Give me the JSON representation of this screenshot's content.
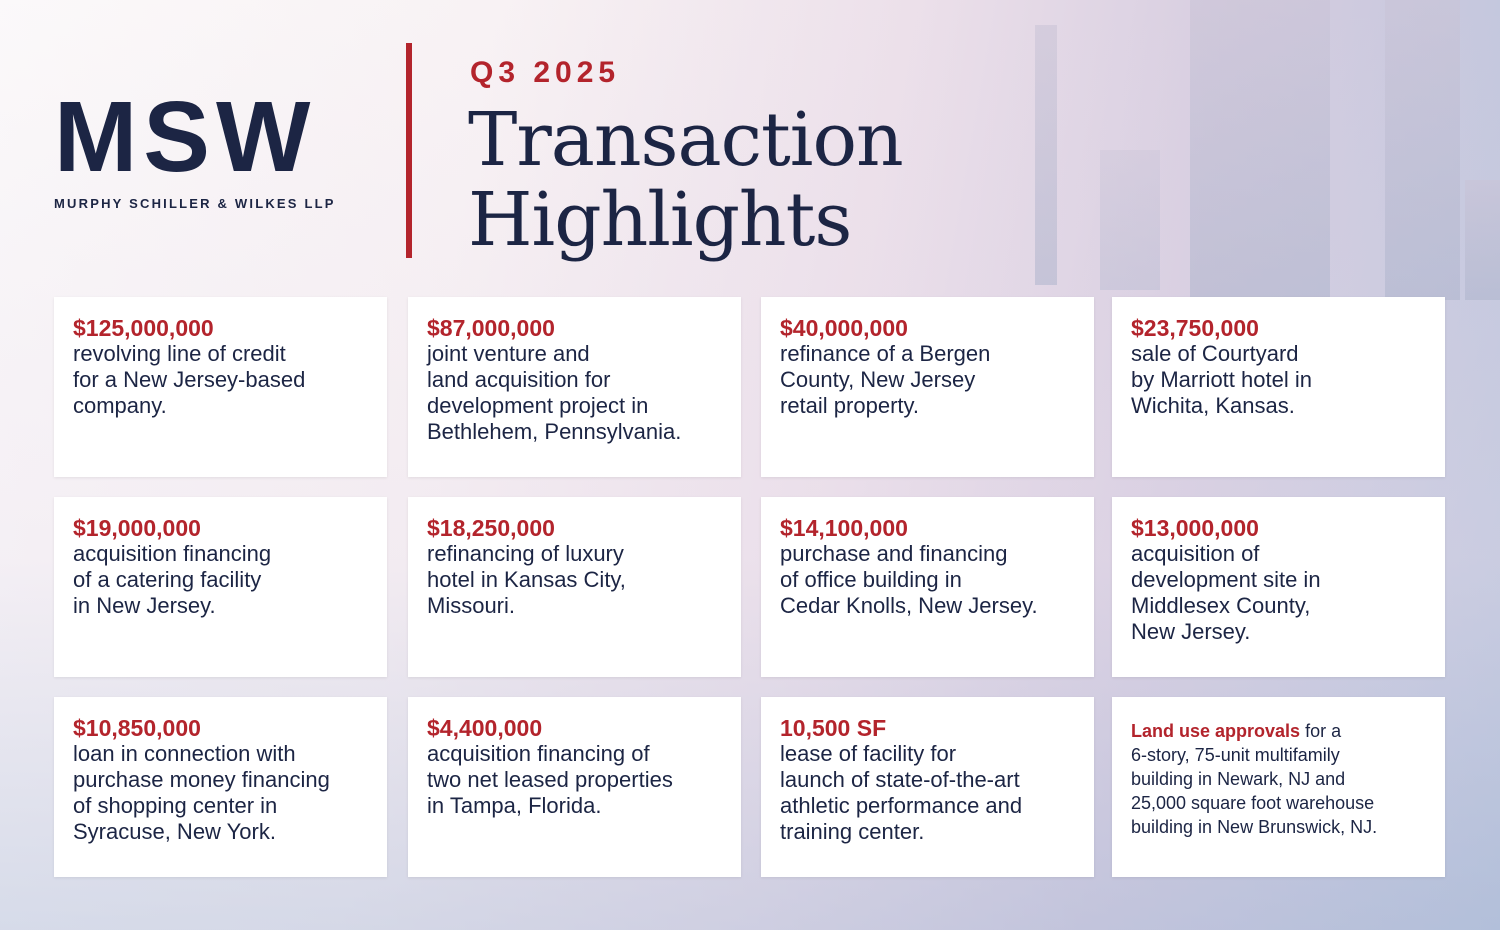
{
  "logo": {
    "mark": "MSW",
    "firm_name": "MURPHY SCHILLER & WILKES LLP"
  },
  "header": {
    "quarter": "Q3 2025",
    "title_line1": "Transaction",
    "title_line2": "Highlights"
  },
  "colors": {
    "navy": "#1c2544",
    "red": "#b3242c"
  },
  "cards": [
    {
      "amount": "$125,000,000",
      "description": "revolving line of credit\nfor a New Jersey-based\ncompany."
    },
    {
      "amount": "$87,000,000",
      "description": "joint venture and\nland acquisition for\ndevelopment project in\nBethlehem, Pennsylvania."
    },
    {
      "amount": "$40,000,000",
      "description": "refinance of a Bergen\nCounty, New Jersey\nretail property."
    },
    {
      "amount": "$23,750,000",
      "description": "sale of Courtyard\nby Marriott hotel in\nWichita, Kansas."
    },
    {
      "amount": "$19,000,000",
      "description": "acquisition financing\nof a catering facility\nin New Jersey."
    },
    {
      "amount": "$18,250,000",
      "description": "refinancing of luxury\nhotel in Kansas City,\nMissouri."
    },
    {
      "amount": "$14,100,000",
      "description": "purchase and financing\nof office building in\nCedar Knolls, New Jersey."
    },
    {
      "amount": "$13,000,000",
      "description": "acquisition of\ndevelopment site in\nMiddlesex County,\nNew Jersey."
    },
    {
      "amount": "$10,850,000",
      "description": "loan in connection with\npurchase money financing\nof shopping center in\nSyracuse, New York."
    },
    {
      "amount": "$4,400,000",
      "description": "acquisition financing of\ntwo net leased properties\nin Tampa, Florida."
    },
    {
      "amount": "10,500 SF",
      "description": "lease of facility for\nlaunch of state-of-the-art\nathletic performance and\ntraining center."
    },
    {
      "amount": "Land use approvals",
      "description": " for a\n6-story, 75-unit multifamily\nbuilding in Newark, NJ and\n25,000 square foot warehouse\nbuilding in New Brunswick, NJ."
    }
  ]
}
